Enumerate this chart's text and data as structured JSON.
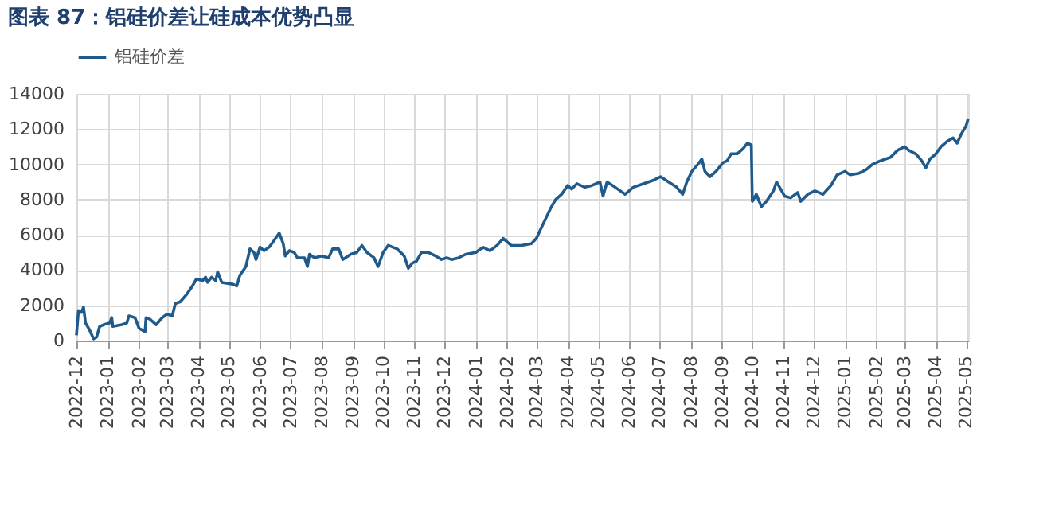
{
  "chart_data": {
    "type": "line",
    "title": "图表 87：铝硅价差让硅成本优势凸显",
    "x": [
      "2022-12-01",
      "2022-12-03",
      "2022-12-06",
      "2022-12-08",
      "2022-12-10",
      "2022-12-14",
      "2022-12-18",
      "2022-12-21",
      "2022-12-24",
      "2022-12-28",
      "2023-01-03",
      "2023-01-05",
      "2023-01-06",
      "2023-01-15",
      "2023-01-20",
      "2023-01-22",
      "2023-01-28",
      "2023-02-01",
      "2023-02-07",
      "2023-02-08",
      "2023-02-12",
      "2023-02-18",
      "2023-02-24",
      "2023-03-01",
      "2023-03-06",
      "2023-03-09",
      "2023-03-14",
      "2023-03-20",
      "2023-03-26",
      "2023-03-30",
      "2023-04-05",
      "2023-04-08",
      "2023-04-10",
      "2023-04-14",
      "2023-04-18",
      "2023-04-20",
      "2023-04-24",
      "2023-05-05",
      "2023-05-09",
      "2023-05-12",
      "2023-05-18",
      "2023-05-22",
      "2023-05-26",
      "2023-05-28",
      "2023-06-01",
      "2023-06-05",
      "2023-06-10",
      "2023-06-14",
      "2023-06-20",
      "2023-06-24",
      "2023-06-26",
      "2023-06-30",
      "2023-07-05",
      "2023-07-08",
      "2023-07-15",
      "2023-07-18",
      "2023-07-20",
      "2023-07-25",
      "2023-08-01",
      "2023-08-08",
      "2023-08-12",
      "2023-08-18",
      "2023-08-22",
      "2023-08-30",
      "2023-09-05",
      "2023-09-10",
      "2023-09-15",
      "2023-09-22",
      "2023-09-26",
      "2023-10-01",
      "2023-10-06",
      "2023-10-15",
      "2023-10-22",
      "2023-10-26",
      "2023-10-30",
      "2023-11-03",
      "2023-11-08",
      "2023-11-15",
      "2023-11-22",
      "2023-11-28",
      "2023-12-03",
      "2023-12-08",
      "2023-12-15",
      "2023-12-22",
      "2024-01-01",
      "2024-01-08",
      "2024-01-15",
      "2024-01-22",
      "2024-01-28",
      "2024-02-05",
      "2024-02-15",
      "2024-02-25",
      "2024-03-01",
      "2024-03-05",
      "2024-03-10",
      "2024-03-15",
      "2024-03-20",
      "2024-03-26",
      "2024-04-01",
      "2024-04-05",
      "2024-04-10",
      "2024-04-18",
      "2024-04-25",
      "2024-05-03",
      "2024-05-06",
      "2024-05-10",
      "2024-05-18",
      "2024-05-28",
      "2024-06-05",
      "2024-06-15",
      "2024-06-25",
      "2024-07-02",
      "2024-07-10",
      "2024-07-18",
      "2024-07-24",
      "2024-07-28",
      "2024-08-02",
      "2024-08-08",
      "2024-08-12",
      "2024-08-15",
      "2024-08-20",
      "2024-08-26",
      "2024-09-02",
      "2024-09-06",
      "2024-09-10",
      "2024-09-16",
      "2024-09-22",
      "2024-09-26",
      "2024-09-30",
      "2024-10-01",
      "2024-10-05",
      "2024-10-10",
      "2024-10-15",
      "2024-10-22",
      "2024-10-25",
      "2024-11-02",
      "2024-11-08",
      "2024-11-15",
      "2024-11-18",
      "2024-11-25",
      "2024-12-02",
      "2024-12-10",
      "2024-12-18",
      "2024-12-24",
      "2025-01-01",
      "2025-01-06",
      "2025-01-15",
      "2025-01-22",
      "2025-01-28",
      "2025-02-05",
      "2025-02-15",
      "2025-02-22",
      "2025-03-01",
      "2025-03-05",
      "2025-03-12",
      "2025-03-18",
      "2025-03-22",
      "2025-03-26",
      "2025-04-01",
      "2025-04-06",
      "2025-04-12",
      "2025-04-18",
      "2025-04-22",
      "2025-04-26",
      "2025-05-01",
      "2025-05-03"
    ],
    "series": [
      {
        "name": "铝硅价差",
        "color": "#1f5a8a",
        "values": [
          300,
          1700,
          1600,
          1900,
          1000,
          600,
          100,
          200,
          800,
          900,
          1000,
          1300,
          800,
          900,
          1000,
          1400,
          1300,
          700,
          500,
          1300,
          1200,
          900,
          1300,
          1500,
          1400,
          2100,
          2200,
          2600,
          3100,
          3500,
          3400,
          3600,
          3300,
          3600,
          3400,
          3900,
          3300,
          3200,
          3100,
          3700,
          4200,
          5200,
          5000,
          4600,
          5300,
          5100,
          5300,
          5600,
          6100,
          5500,
          4800,
          5100,
          5000,
          4700,
          4700,
          4200,
          4900,
          4700,
          4800,
          4700,
          5200,
          5200,
          4600,
          4900,
          5000,
          5400,
          5000,
          4700,
          4200,
          5000,
          5400,
          5200,
          4800,
          4100,
          4400,
          4500,
          5000,
          5000,
          4800,
          4600,
          4700,
          4600,
          4700,
          4900,
          5000,
          5300,
          5100,
          5400,
          5800,
          5400,
          5400,
          5500,
          5800,
          6300,
          6900,
          7500,
          8000,
          8300,
          8800,
          8600,
          8900,
          8700,
          8800,
          9000,
          8200,
          9000,
          8700,
          8300,
          8700,
          8900,
          9100,
          9300,
          9000,
          8700,
          8300,
          9000,
          9600,
          10000,
          10300,
          9600,
          9300,
          9600,
          10100,
          10200,
          10600,
          10600,
          10900,
          11200,
          11100,
          7900,
          8300,
          7600,
          7900,
          8500,
          9000,
          8200,
          8100,
          8400,
          7900,
          8300,
          8500,
          8300,
          8800,
          9400,
          9600,
          9400,
          9500,
          9700,
          10000,
          10200,
          10400,
          10800,
          11000,
          10800,
          10600,
          10200,
          9800,
          10300,
          10600,
          11000,
          11300,
          11500,
          11200,
          11700,
          12200,
          12600
        ]
      }
    ],
    "xlim": [
      "2022-12-01",
      "2025-05-03"
    ],
    "xticks": [
      "2022-12",
      "2023-01",
      "2023-02",
      "2023-03",
      "2023-04",
      "2023-05",
      "2023-06",
      "2023-07",
      "2023-08",
      "2023-09",
      "2023-10",
      "2023-11",
      "2023-12",
      "2024-01",
      "2024-02",
      "2024-03",
      "2024-04",
      "2024-05",
      "2024-06",
      "2024-07",
      "2024-08",
      "2024-09",
      "2024-10",
      "2024-11",
      "2024-12",
      "2025-01",
      "2025-02",
      "2025-03",
      "2025-04",
      "2025-05"
    ],
    "ylim": [
      0,
      14000
    ],
    "yticks": [
      0,
      2000,
      4000,
      6000,
      8000,
      10000,
      12000,
      14000
    ],
    "grid": true,
    "legend": "top",
    "line_style": "solid",
    "marker": "none"
  }
}
